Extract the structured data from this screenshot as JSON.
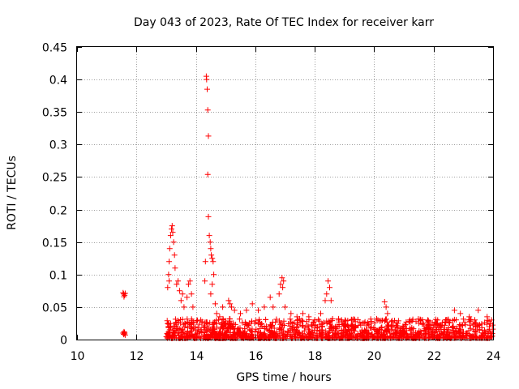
{
  "chart_data": {
    "type": "scatter",
    "title": "Day 043 of 2023, Rate Of TEC Index for receiver karr",
    "xlabel": "GPS time / hours",
    "ylabel": "ROTI / TECUs",
    "xlim": [
      10,
      24
    ],
    "ylim": [
      0,
      0.45
    ],
    "x_ticks": [
      "10",
      "12",
      "14",
      "16",
      "18",
      "20",
      "22",
      "24"
    ],
    "y_ticks": [
      "0",
      "0.05",
      "0.1",
      "0.15",
      "0.2",
      "0.25",
      "0.3",
      "0.35",
      "0.4",
      "0.45"
    ],
    "grid": true,
    "marker": "plus",
    "color": "#ff0000",
    "points": [
      [
        11.55,
        0.072
      ],
      [
        11.57,
        0.07
      ],
      [
        11.6,
        0.068
      ],
      [
        11.62,
        0.071
      ],
      [
        11.58,
        0.066
      ],
      [
        11.55,
        0.01
      ],
      [
        11.57,
        0.008
      ],
      [
        11.6,
        0.011
      ],
      [
        11.62,
        0.007
      ],
      [
        11.58,
        0.012
      ],
      [
        11.6,
        0.009
      ],
      [
        13.05,
        0.08
      ],
      [
        13.08,
        0.1
      ],
      [
        13.1,
        0.12
      ],
      [
        13.12,
        0.14
      ],
      [
        13.15,
        0.16
      ],
      [
        13.18,
        0.17
      ],
      [
        13.2,
        0.175
      ],
      [
        13.22,
        0.165
      ],
      [
        13.25,
        0.15
      ],
      [
        13.28,
        0.13
      ],
      [
        13.3,
        0.11
      ],
      [
        13.1,
        0.09
      ],
      [
        13.35,
        0.085
      ],
      [
        13.4,
        0.09
      ],
      [
        13.45,
        0.075
      ],
      [
        13.5,
        0.06
      ],
      [
        13.55,
        0.07
      ],
      [
        13.6,
        0.05
      ],
      [
        13.7,
        0.065
      ],
      [
        13.75,
        0.085
      ],
      [
        13.8,
        0.09
      ],
      [
        13.85,
        0.07
      ],
      [
        13.9,
        0.05
      ],
      [
        14.3,
        0.09
      ],
      [
        14.32,
        0.12
      ],
      [
        14.35,
        0.405
      ],
      [
        14.36,
        0.4
      ],
      [
        14.38,
        0.385
      ],
      [
        14.4,
        0.353
      ],
      [
        14.42,
        0.313
      ],
      [
        14.4,
        0.254
      ],
      [
        14.42,
        0.189
      ],
      [
        14.45,
        0.16
      ],
      [
        14.48,
        0.15
      ],
      [
        14.5,
        0.14
      ],
      [
        14.52,
        0.13
      ],
      [
        14.55,
        0.125
      ],
      [
        14.58,
        0.12
      ],
      [
        14.6,
        0.1
      ],
      [
        14.55,
        0.085
      ],
      [
        14.5,
        0.07
      ],
      [
        14.65,
        0.055
      ],
      [
        14.7,
        0.04
      ],
      [
        14.8,
        0.035
      ],
      [
        14.9,
        0.05
      ],
      [
        15.1,
        0.06
      ],
      [
        15.15,
        0.055
      ],
      [
        15.2,
        0.05
      ],
      [
        15.3,
        0.045
      ],
      [
        15.5,
        0.04
      ],
      [
        15.7,
        0.045
      ],
      [
        15.9,
        0.055
      ],
      [
        16.1,
        0.045
      ],
      [
        16.3,
        0.05
      ],
      [
        16.5,
        0.065
      ],
      [
        16.6,
        0.05
      ],
      [
        16.8,
        0.07
      ],
      [
        16.85,
        0.085
      ],
      [
        16.9,
        0.095
      ],
      [
        16.95,
        0.09
      ],
      [
        16.92,
        0.08
      ],
      [
        17.0,
        0.05
      ],
      [
        17.2,
        0.04
      ],
      [
        17.4,
        0.035
      ],
      [
        17.6,
        0.04
      ],
      [
        17.8,
        0.035
      ],
      [
        18.0,
        0.03
      ],
      [
        18.2,
        0.04
      ],
      [
        18.35,
        0.06
      ],
      [
        18.4,
        0.07
      ],
      [
        18.45,
        0.09
      ],
      [
        18.5,
        0.08
      ],
      [
        18.55,
        0.06
      ],
      [
        18.8,
        0.03
      ],
      [
        19.0,
        0.025
      ],
      [
        19.3,
        0.03
      ],
      [
        19.6,
        0.025
      ],
      [
        19.9,
        0.028
      ],
      [
        20.35,
        0.058
      ],
      [
        20.4,
        0.05
      ],
      [
        20.45,
        0.04
      ],
      [
        20.8,
        0.025
      ],
      [
        21.2,
        0.03
      ],
      [
        21.5,
        0.025
      ],
      [
        21.8,
        0.03
      ],
      [
        22.1,
        0.025
      ],
      [
        22.4,
        0.03
      ],
      [
        22.7,
        0.045
      ],
      [
        22.9,
        0.04
      ],
      [
        23.2,
        0.035
      ],
      [
        23.5,
        0.045
      ],
      [
        23.8,
        0.035
      ],
      [
        23.95,
        0.03
      ]
    ]
  }
}
